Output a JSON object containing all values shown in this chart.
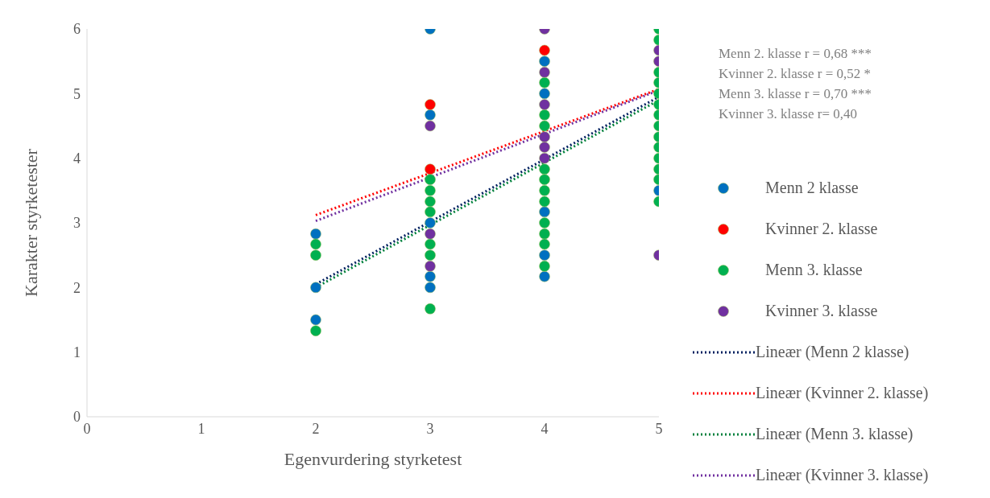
{
  "chart_data": {
    "type": "scatter",
    "xlabel": "Egenvurdering styrketest",
    "ylabel": "Karakter styrketester",
    "xlim": [
      0,
      5
    ],
    "xticks": [
      0,
      1,
      2,
      3,
      4,
      5
    ],
    "ylim": [
      0,
      6
    ],
    "yticks": [
      0,
      1,
      2,
      3,
      4,
      5,
      6
    ],
    "grid": false,
    "legend": "right",
    "marker": "circle",
    "annotations": [
      "Menn 2. klasse r =  0,68 ***",
      "Kvinner 2. klasse r = 0,52 *",
      "Menn 3. klasse r = 0,70 ***",
      "Kvinner 3. klasse r= 0,40"
    ],
    "series": [
      {
        "name": "Menn 2 klasse",
        "color": "#0070c0",
        "x": [
          2,
          2,
          2,
          3,
          3,
          3,
          3,
          3,
          4,
          4,
          4,
          4,
          4,
          5
        ],
        "values": [
          2.83,
          2,
          1.5,
          6,
          4.67,
          3,
          2.17,
          2,
          5.5,
          5,
          3.17,
          2.5,
          2.17,
          3.5
        ]
      },
      {
        "name": "Kvinner 2. klasse",
        "color": "#ff0000",
        "x": [
          3,
          3,
          4
        ],
        "values": [
          4.83,
          3.83,
          5.67
        ]
      },
      {
        "name": "Menn 3. klasse",
        "color": "#00b050",
        "x": [
          2,
          2,
          2,
          3,
          3,
          3,
          3,
          3,
          3,
          3,
          4,
          4,
          4,
          4,
          4,
          4,
          4,
          4,
          4,
          4,
          4,
          5,
          5,
          5,
          5,
          5,
          5,
          5,
          5,
          5,
          5,
          5,
          5,
          5,
          5
        ],
        "values": [
          2.67,
          2.5,
          1.33,
          3.67,
          3.5,
          3.33,
          3.17,
          2.67,
          2.5,
          1.67,
          5.17,
          4.67,
          4.5,
          3.83,
          3.67,
          3.5,
          3.33,
          3,
          2.83,
          2.67,
          2.33,
          6,
          5.83,
          5.33,
          5.17,
          5,
          4.83,
          4.67,
          4.5,
          4.33,
          4.17,
          4,
          3.83,
          3.67,
          3.33
        ]
      },
      {
        "name": "Kvinner 3. klasse",
        "color": "#7030a0",
        "x": [
          3,
          3,
          3,
          4,
          4,
          4,
          4,
          4,
          4,
          5,
          5,
          5
        ],
        "values": [
          4.5,
          2.83,
          2.33,
          6,
          5.33,
          4.83,
          4.33,
          4.17,
          4,
          5.67,
          5.5,
          2.5
        ]
      },
      {
        "name": "Lineær (Menn 2 klasse)",
        "type": "line",
        "color": "#002060",
        "line_style": "dotted",
        "marker": "none",
        "x": [
          2,
          5
        ],
        "values": [
          2.05,
          4.95
        ]
      },
      {
        "name": "Lineær (Kvinner 2. klasse)",
        "type": "line",
        "color": "#ff0000",
        "line_style": "dotted",
        "marker": "none",
        "x": [
          2,
          5
        ],
        "values": [
          3.12,
          5.07
        ]
      },
      {
        "name": "Lineær (Menn 3. klasse)",
        "type": "line",
        "color": "#00803c",
        "line_style": "dotted",
        "marker": "none",
        "x": [
          2,
          5
        ],
        "values": [
          2,
          4.9
        ]
      },
      {
        "name": "Lineær (Kvinner 3. klasse)",
        "type": "line",
        "color": "#7030a0",
        "line_style": "dotted",
        "marker": "none",
        "x": [
          2,
          5
        ],
        "values": [
          3.03,
          5.05
        ]
      }
    ]
  }
}
